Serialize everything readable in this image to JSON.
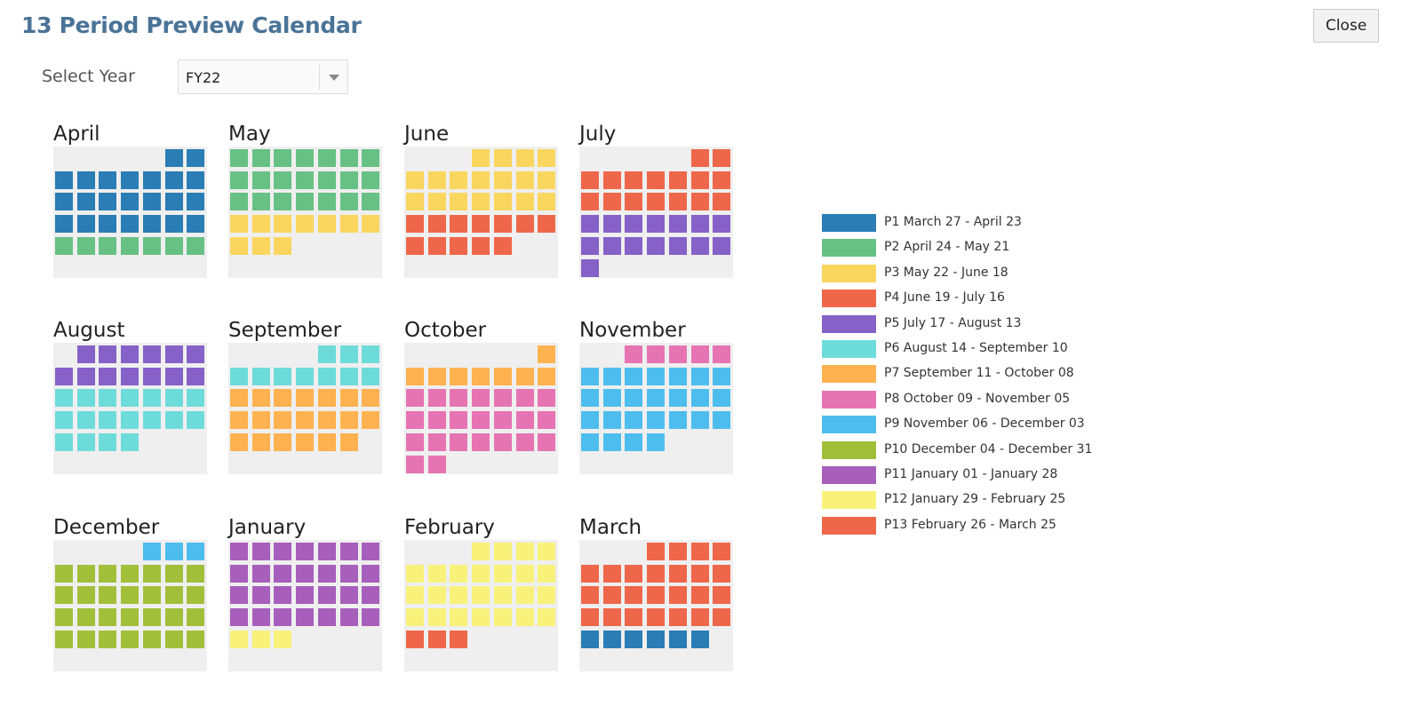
{
  "title": "13 Period Preview Calendar",
  "close_label": "Close",
  "year_select": {
    "label": "Select Year",
    "value": "FY22"
  },
  "periods": [
    {
      "id": 1,
      "label": "P1 March 27 - April 23",
      "color": "#2a7db5"
    },
    {
      "id": 2,
      "label": "P2 April 24 - May 21",
      "color": "#67c184"
    },
    {
      "id": 3,
      "label": "P3 May 22 - June 18",
      "color": "#fad65f"
    },
    {
      "id": 4,
      "label": "P4 June 19 - July 16",
      "color": "#ef674a"
    },
    {
      "id": 5,
      "label": "P5 July 17 - August 13",
      "color": "#8661c8"
    },
    {
      "id": 6,
      "label": "P6 August 14 - September 10",
      "color": "#6edbdb"
    },
    {
      "id": 7,
      "label": "P7 September 11 - October 08",
      "color": "#ffb24f"
    },
    {
      "id": 8,
      "label": "P8 October 09 - November 05",
      "color": "#e674b3"
    },
    {
      "id": 9,
      "label": "P9 November 06 - December 03",
      "color": "#4dbdee"
    },
    {
      "id": 10,
      "label": "P10 December 04 - December 31",
      "color": "#a2bf3a"
    },
    {
      "id": 11,
      "label": "P11 January 01 - January 28",
      "color": "#a75fbb"
    },
    {
      "id": 12,
      "label": "P12 January 29 - February 25",
      "color": "#f8f27b"
    },
    {
      "id": 13,
      "label": "P13 February 26 - March 25",
      "color": "#ef674a"
    }
  ],
  "months": [
    {
      "name": "April",
      "start_weekday": 5,
      "segments": [
        [
          1,
          23
        ],
        [
          2,
          7
        ]
      ]
    },
    {
      "name": "May",
      "start_weekday": 0,
      "segments": [
        [
          2,
          21
        ],
        [
          3,
          10
        ]
      ]
    },
    {
      "name": "June",
      "start_weekday": 3,
      "segments": [
        [
          3,
          18
        ],
        [
          4,
          12
        ]
      ]
    },
    {
      "name": "July",
      "start_weekday": 5,
      "segments": [
        [
          4,
          16
        ],
        [
          5,
          15
        ]
      ]
    },
    {
      "name": "August",
      "start_weekday": 1,
      "segments": [
        [
          5,
          13
        ],
        [
          6,
          18
        ]
      ]
    },
    {
      "name": "September",
      "start_weekday": 4,
      "segments": [
        [
          6,
          10
        ],
        [
          7,
          20
        ]
      ]
    },
    {
      "name": "October",
      "start_weekday": 6,
      "segments": [
        [
          7,
          8
        ],
        [
          8,
          23
        ]
      ]
    },
    {
      "name": "November",
      "start_weekday": 2,
      "segments": [
        [
          8,
          5
        ],
        [
          9,
          25
        ]
      ]
    },
    {
      "name": "December",
      "start_weekday": 4,
      "segments": [
        [
          9,
          3
        ],
        [
          10,
          28
        ]
      ]
    },
    {
      "name": "January",
      "start_weekday": 0,
      "segments": [
        [
          11,
          28
        ],
        [
          12,
          3
        ]
      ]
    },
    {
      "name": "February",
      "start_weekday": 3,
      "segments": [
        [
          12,
          25
        ],
        [
          13,
          3
        ]
      ]
    },
    {
      "name": "March",
      "start_weekday": 3,
      "segments": [
        [
          13,
          25
        ],
        [
          1,
          6
        ]
      ]
    }
  ]
}
